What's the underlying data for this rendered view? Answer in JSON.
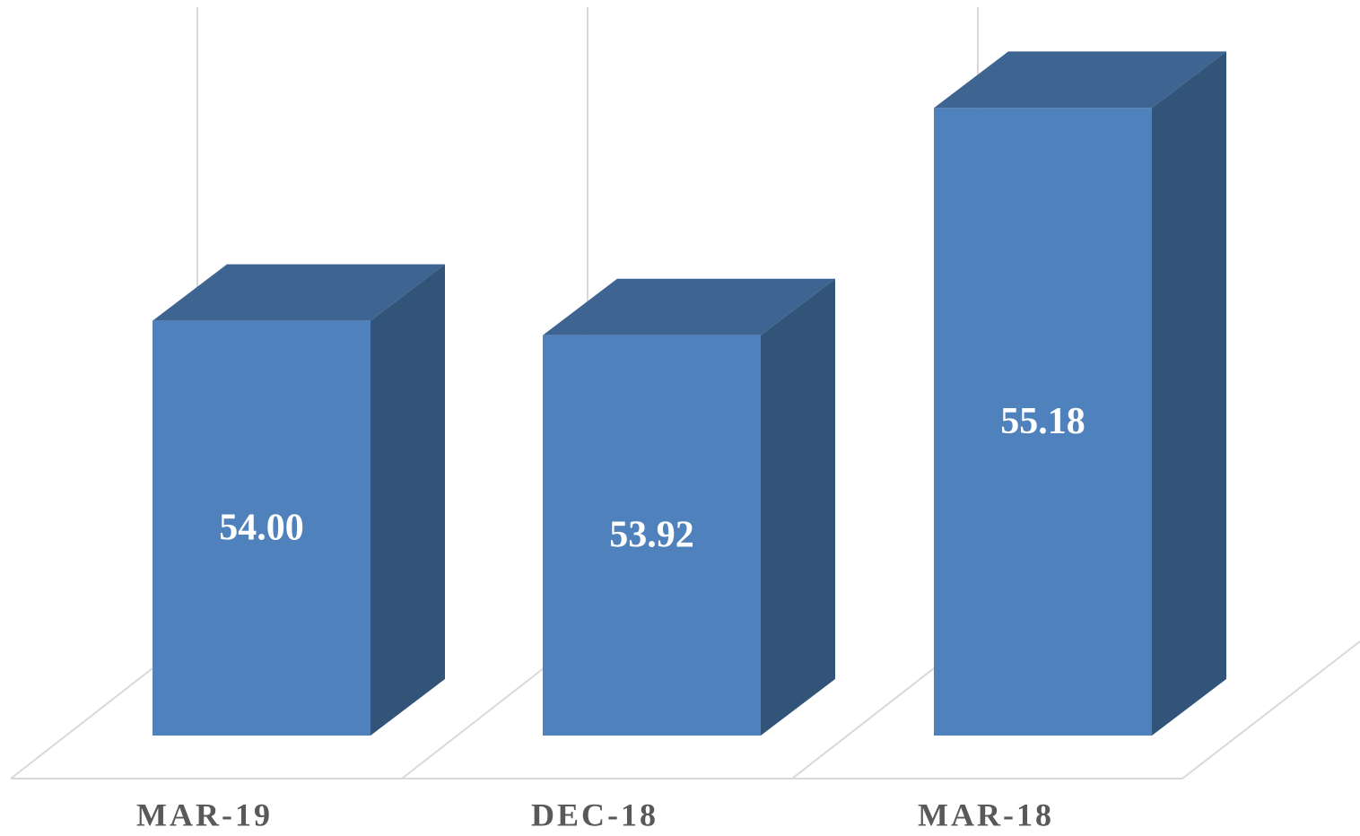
{
  "chart_data": {
    "type": "bar3d",
    "categories": [
      "MAR-19",
      "DEC-18",
      "MAR-18"
    ],
    "values": [
      54.0,
      53.92,
      55.18
    ],
    "value_labels": [
      "54.00",
      "53.92",
      "55.18"
    ],
    "color": "#4f81bd",
    "ylim": [
      51.7,
      55.6
    ]
  }
}
